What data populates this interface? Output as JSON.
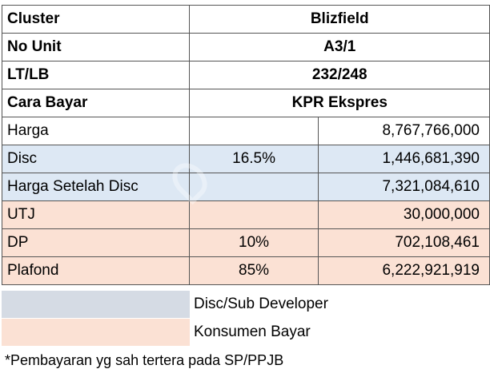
{
  "header_rows": [
    {
      "label": "Cluster",
      "value": "Blizfield"
    },
    {
      "label": "No Unit",
      "value": "A3/1"
    },
    {
      "label": "LT/LB",
      "value": "232/248"
    },
    {
      "label": "Cara Bayar",
      "value": "KPR Ekspres"
    }
  ],
  "rows": [
    {
      "label": "Harga",
      "pct": "",
      "amount": "8,767,766,000",
      "group": "none"
    },
    {
      "label": "Disc",
      "pct": "16.5%",
      "amount": "1,446,681,390",
      "group": "developer"
    },
    {
      "label": "Harga Setelah Disc",
      "pct": "",
      "amount": "7,321,084,610",
      "group": "developer"
    },
    {
      "label": "UTJ",
      "pct": "",
      "amount": "30,000,000",
      "group": "konsumen"
    },
    {
      "label": "DP",
      "pct": "10%",
      "amount": "702,108,461",
      "group": "konsumen"
    },
    {
      "label": "Plafond",
      "pct": "85%",
      "amount": "6,222,921,919",
      "group": "konsumen"
    }
  ],
  "legend": {
    "developer": "Disc/Sub Developer",
    "konsumen": "Konsumen Bayar"
  },
  "note": "*Pembayaran yg sah tertera pada SP/PPJB",
  "colors": {
    "developer_fill": "#dde8f4",
    "konsumen_fill": "#fbe1d4",
    "legend_gray": "#d5dbe4"
  }
}
